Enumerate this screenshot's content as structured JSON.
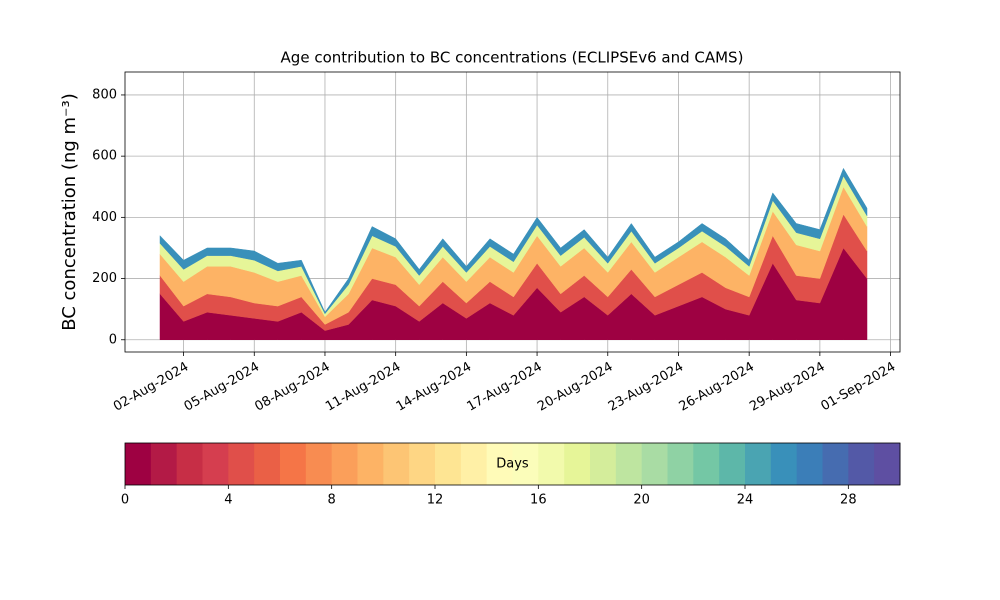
{
  "chart_data": {
    "type": "stacked-area",
    "title": "Age contribution to BC concentrations (ECLIPSEv6 and CAMS)",
    "y_label": "BC concentration (ng m⁻³)",
    "x": [
      "01-Aug-2024",
      "02-Aug-2024",
      "03-Aug-2024",
      "04-Aug-2024",
      "05-Aug-2024",
      "06-Aug-2024",
      "07-Aug-2024",
      "08-Aug-2024",
      "09-Aug-2024",
      "10-Aug-2024",
      "11-Aug-2024",
      "12-Aug-2024",
      "13-Aug-2024",
      "14-Aug-2024",
      "15-Aug-2024",
      "16-Aug-2024",
      "17-Aug-2024",
      "18-Aug-2024",
      "19-Aug-2024",
      "20-Aug-2024",
      "21-Aug-2024",
      "22-Aug-2024",
      "23-Aug-2024",
      "24-Aug-2024",
      "25-Aug-2024",
      "26-Aug-2024",
      "27-Aug-2024",
      "28-Aug-2024",
      "29-Aug-2024",
      "30-Aug-2024",
      "31-Aug-2024"
    ],
    "series": [
      {
        "color": "#9e0142",
        "values": [
          150,
          60,
          90,
          80,
          70,
          60,
          90,
          30,
          50,
          130,
          110,
          60,
          120,
          70,
          120,
          80,
          170,
          90,
          140,
          80,
          150,
          80,
          110,
          140,
          100,
          80,
          250,
          130,
          120,
          300,
          200
        ]
      },
      {
        "color": "#e04f4a",
        "values": [
          60,
          50,
          60,
          60,
          50,
          50,
          50,
          20,
          40,
          70,
          70,
          50,
          70,
          50,
          70,
          60,
          80,
          60,
          70,
          60,
          80,
          60,
          70,
          80,
          70,
          60,
          90,
          80,
          80,
          110,
          90
        ]
      },
      {
        "color": "#fdb365",
        "values": [
          70,
          80,
          90,
          100,
          100,
          80,
          70,
          25,
          60,
          100,
          90,
          70,
          80,
          70,
          80,
          80,
          90,
          90,
          90,
          80,
          90,
          80,
          90,
          100,
          100,
          70,
          80,
          100,
          90,
          90,
          80
        ]
      },
      {
        "color": "#e6f598",
        "values": [
          35,
          40,
          35,
          35,
          40,
          35,
          30,
          10,
          30,
          40,
          35,
          30,
          35,
          30,
          35,
          35,
          35,
          35,
          35,
          30,
          35,
          30,
          30,
          35,
          35,
          30,
          35,
          40,
          40,
          35,
          35
        ]
      },
      {
        "color": "#3990ba",
        "values": [
          25,
          30,
          25,
          25,
          30,
          25,
          20,
          5,
          20,
          30,
          25,
          20,
          25,
          20,
          25,
          25,
          25,
          25,
          25,
          20,
          25,
          20,
          20,
          25,
          25,
          20,
          25,
          30,
          30,
          25,
          25
        ]
      }
    ],
    "ylim": [
      -40,
      875
    ],
    "yticks": [
      0,
      200,
      400,
      600,
      800
    ],
    "xticks": [
      "02-Aug-2024",
      "05-Aug-2024",
      "08-Aug-2024",
      "11-Aug-2024",
      "14-Aug-2024",
      "17-Aug-2024",
      "20-Aug-2024",
      "23-Aug-2024",
      "26-Aug-2024",
      "29-Aug-2024",
      "01-Sep-2024"
    ],
    "grid": true,
    "colorbar": {
      "label": "Days",
      "lim": [
        0,
        30
      ],
      "ticks": [
        0,
        4,
        8,
        12,
        16,
        20,
        24,
        28
      ],
      "colors": [
        "#9e0142",
        "#b31a46",
        "#c72e46",
        "#d53e4f",
        "#e04f4a",
        "#ea6046",
        "#f57547",
        "#f88c51",
        "#fb9f5a",
        "#fdb365",
        "#fdc574",
        "#fed684",
        "#fee593",
        "#fff0a6",
        "#fffbb8",
        "#fbfdba",
        "#f2faac",
        "#e6f598",
        "#d4ed9b",
        "#bee5a0",
        "#a9dca4",
        "#8fd2a4",
        "#74c7a5",
        "#5db7a9",
        "#4aa4b2",
        "#3990ba",
        "#3b7eb8",
        "#466cb0",
        "#5359a7",
        "#5e4fa2"
      ]
    }
  }
}
